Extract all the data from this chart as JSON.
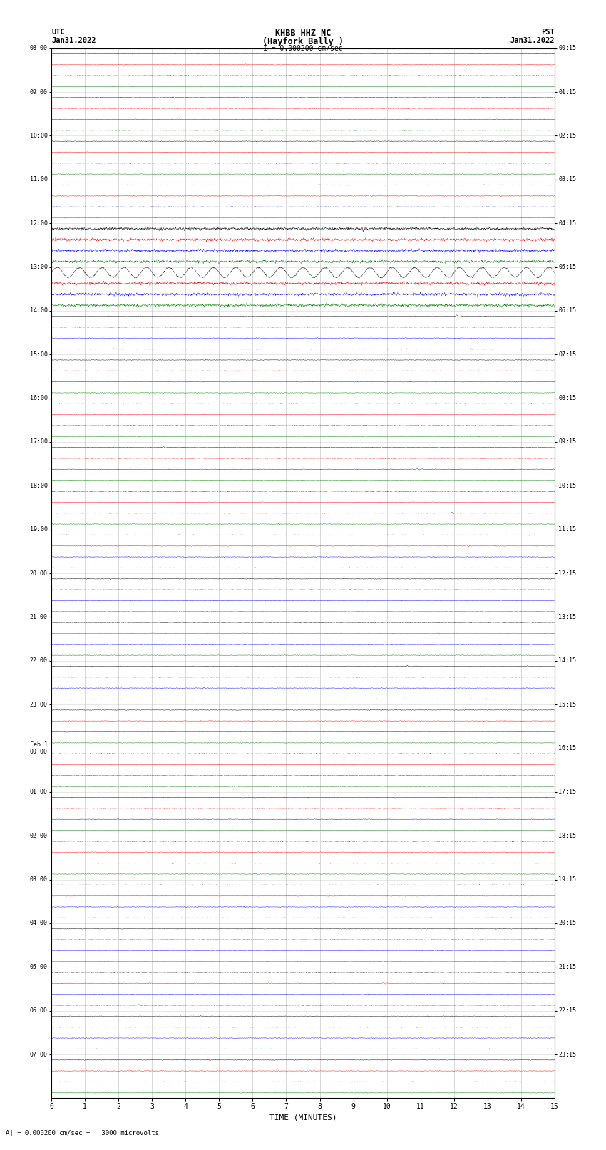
{
  "title_line1": "KHBB HHZ NC",
  "title_line2": "(Hayfork Bally )",
  "title_line3": "I = 0.000200 cm/sec",
  "left_header_line1": "UTC",
  "left_header_line2": "Jan31,2022",
  "right_header_line1": "PST",
  "right_header_line2": "Jan31,2022",
  "bottom_xlabel": "TIME (MINUTES)",
  "bottom_annotation": "A| = 0.000200 cm/sec =   3000 microvolts",
  "utc_hours": [
    "08:00",
    "09:00",
    "10:00",
    "11:00",
    "12:00",
    "13:00",
    "14:00",
    "15:00",
    "16:00",
    "17:00",
    "18:00",
    "19:00",
    "20:00",
    "21:00",
    "22:00",
    "23:00",
    "Feb 1\n00:00",
    "01:00",
    "02:00",
    "03:00",
    "04:00",
    "05:00",
    "06:00",
    "07:00"
  ],
  "pst_hours": [
    "00:15",
    "01:15",
    "02:15",
    "03:15",
    "04:15",
    "05:15",
    "06:15",
    "07:15",
    "08:15",
    "09:15",
    "10:15",
    "11:15",
    "12:15",
    "13:15",
    "14:15",
    "15:15",
    "16:15",
    "17:15",
    "18:15",
    "19:15",
    "20:15",
    "21:15",
    "22:15",
    "23:15"
  ],
  "trace_colors": [
    "black",
    "red",
    "blue",
    "green"
  ],
  "num_hours": 24,
  "traces_per_hour": 4,
  "xmin": 0,
  "xmax": 15,
  "background_color": "white",
  "grid_color": "#aaaaaa",
  "fig_width": 8.5,
  "fig_height": 16.13,
  "noise_seed": 42,
  "high_amp_hours": [
    4,
    5
  ],
  "sinusoidal_hour": 5,
  "sinusoidal_color_idx": 0
}
